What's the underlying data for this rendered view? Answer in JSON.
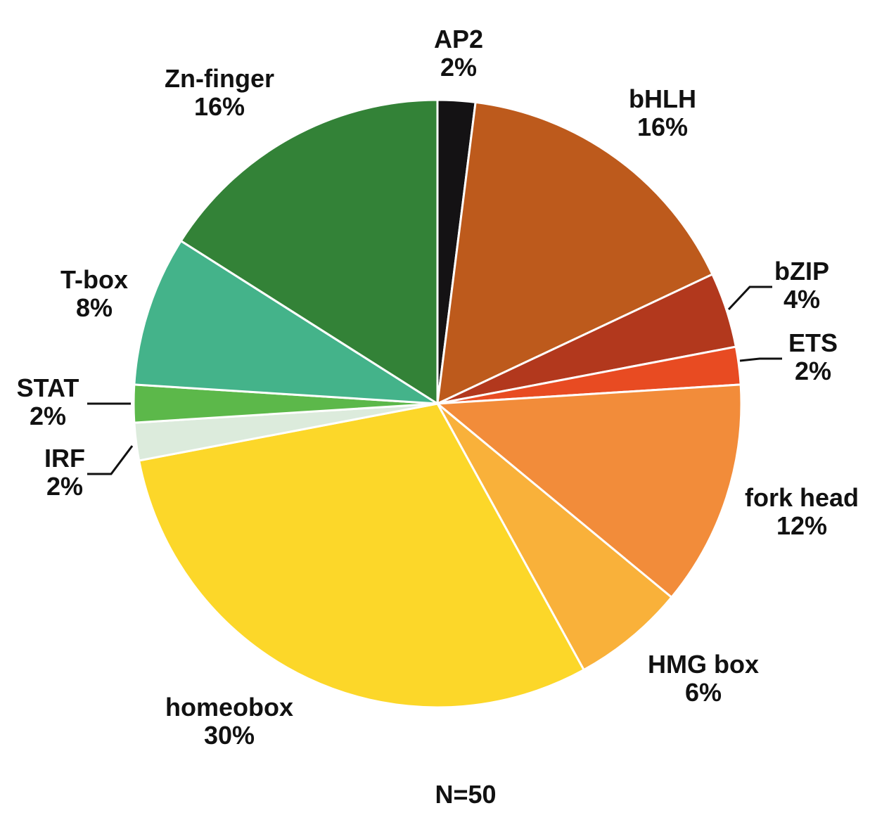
{
  "chart_data": {
    "type": "pie",
    "start_angle_deg": 0,
    "direction": "clockwise",
    "slices": [
      {
        "label": "AP2",
        "value": 2,
        "pct_text": "2%",
        "color": "#141214"
      },
      {
        "label": "bHLH",
        "value": 16,
        "pct_text": "16%",
        "color": "#bd5a1c"
      },
      {
        "label": "bZIP",
        "value": 4,
        "pct_text": "4%",
        "color": "#b2381d"
      },
      {
        "label": "ETS",
        "value": 2,
        "pct_text": "2%",
        "color": "#e84b22"
      },
      {
        "label": "fork head",
        "value": 12,
        "pct_text": "12%",
        "color": "#f28c3a"
      },
      {
        "label": "HMG box",
        "value": 6,
        "pct_text": "6%",
        "color": "#f9b13a"
      },
      {
        "label": "homeobox",
        "value": 30,
        "pct_text": "30%",
        "color": "#fcd729"
      },
      {
        "label": "IRF",
        "value": 2,
        "pct_text": "2%",
        "color": "#dcebdc"
      },
      {
        "label": "STAT",
        "value": 2,
        "pct_text": "2%",
        "color": "#5cb84a"
      },
      {
        "label": "T-box",
        "value": 8,
        "pct_text": "8%",
        "color": "#44b38a"
      },
      {
        "label": "Zn-finger",
        "value": 16,
        "pct_text": "16%",
        "color": "#338237"
      }
    ],
    "footnote": "N=50"
  }
}
